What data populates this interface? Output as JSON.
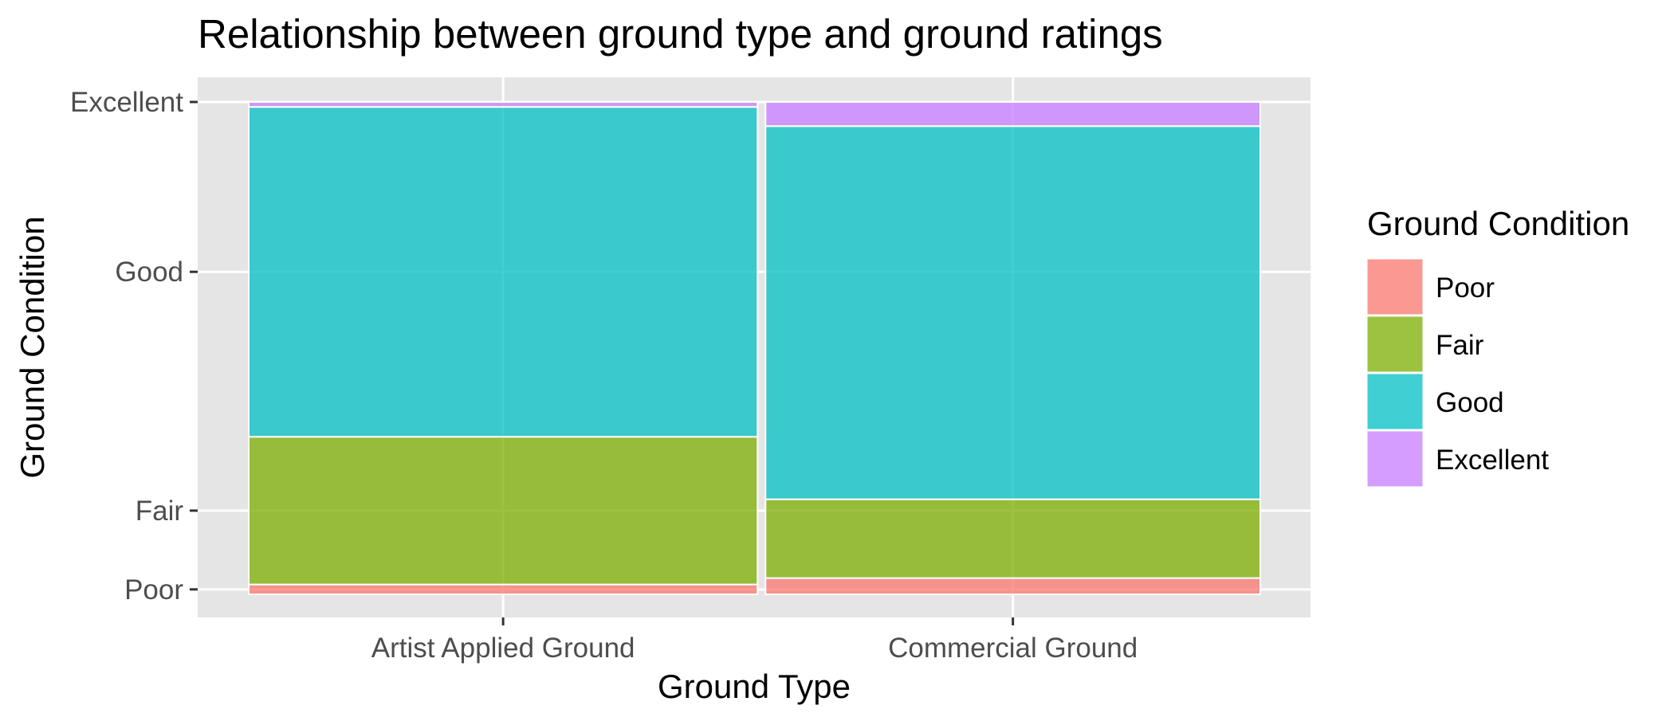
{
  "chart_data": {
    "type": "mosaic",
    "title": "Relationship between ground type and ground ratings",
    "xlabel": "Ground Type",
    "ylabel": "Ground Condition",
    "categories": [
      "Artist Applied Ground",
      "Commercial Ground"
    ],
    "column_widths": [
      0.507,
      0.493
    ],
    "y_ticks": [
      "Poor",
      "Fair",
      "Good",
      "Excellent"
    ],
    "series": [
      {
        "name": "Poor",
        "color": "#F8766D",
        "values": [
          0.02,
          0.033
        ]
      },
      {
        "name": "Fair",
        "color": "#7CAE00",
        "values": [
          0.3,
          0.16
        ]
      },
      {
        "name": "Good",
        "color": "#00BFC4",
        "values": [
          0.67,
          0.758
        ]
      },
      {
        "name": "Excellent",
        "color": "#C77CFF",
        "values": [
          0.01,
          0.049
        ]
      }
    ],
    "legend": {
      "title": "Ground Condition",
      "position": "right"
    },
    "panel_background": "#E5E5E5",
    "grid": true
  }
}
